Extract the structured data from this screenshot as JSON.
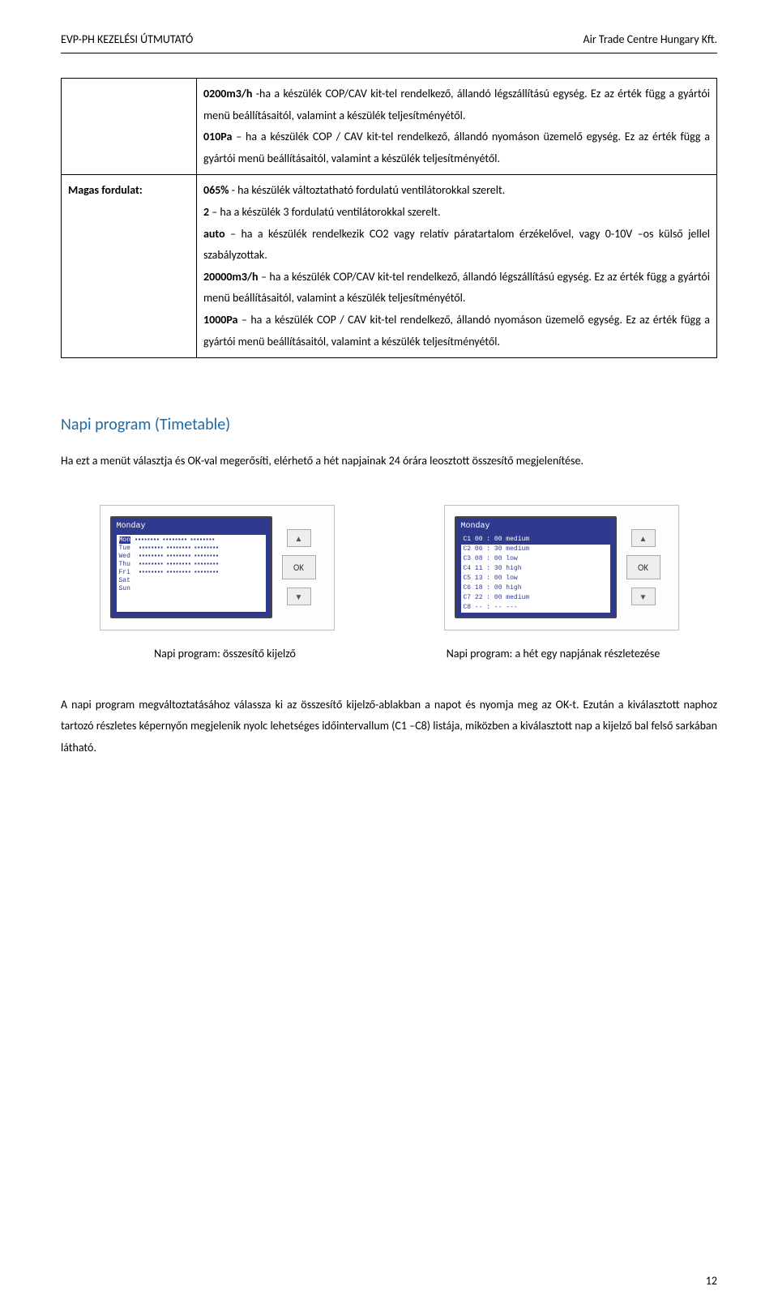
{
  "header": {
    "left": "EVP-PH KEZELÉSI ÚTMUTATÓ",
    "right": "Air Trade Centre Hungary Kft."
  },
  "table": {
    "row1_label": "",
    "row1_body": "0200m3/h -ha a készülék COP/CAV kit-tel rendelkező, állandó légszállítású egység. Ez az érték függ a gyártói menü beállításaitól, valamint a készülék teljesítményétől.\n010Pa – ha a készülék COP / CAV kit-tel rendelkező, állandó nyomáson üzemelő egység. Ez az érték függ a gyártói menü beállításaitól, valamint a készülék teljesítményétől.",
    "row2_label": "Magas fordulat:",
    "row2_body": "065% - ha készülék változtatható fordulatú ventilátorokkal szerelt.\n2 – ha a készülék 3 fordulatú ventilátorokkal szerelt.\nauto – ha a készülék rendelkezik CO2 vagy relatív páratartalom érzékelővel, vagy 0-10V –os külső jellel szabályzottak.\n20000m3/h – ha a készülék COP/CAV kit-tel rendelkező, állandó légszállítású egység. Ez az érték függ a gyártói menü beállításaitól, valamint a készülék teljesítményétől.\n1000Pa – ha a készülék COP / CAV kit-tel rendelkező, állandó nyomáson üzemelő egység. Ez az érték függ a gyártói menü beállításaitól, valamint a készülék teljesítményétől."
  },
  "section": {
    "heading": "Napi program (Timetable)",
    "intro": "Ha ezt a menüt választja és OK-val megerősíti, elérhető a hét napjainak 24 órára leosztott összesítő megjelenítése."
  },
  "figures": {
    "left": {
      "lcd_title": "Monday",
      "days": [
        "Mon",
        "Tue",
        "Wed",
        "Thu",
        "Fri",
        "Sat",
        "Sun"
      ],
      "caption": "Napi program: összesítő kijelző"
    },
    "right": {
      "lcd_title": "Monday",
      "rows": [
        {
          "c": "C1",
          "t": "00 : 00",
          "m": "medium",
          "sel": true
        },
        {
          "c": "C2",
          "t": "06 : 30",
          "m": "medium",
          "sel": false
        },
        {
          "c": "C3",
          "t": "08 : 00",
          "m": "low",
          "sel": false
        },
        {
          "c": "C4",
          "t": "11 : 30",
          "m": "high",
          "sel": false
        },
        {
          "c": "C5",
          "t": "13 : 00",
          "m": "low",
          "sel": false
        },
        {
          "c": "C6",
          "t": "18 : 00",
          "m": "high",
          "sel": false
        },
        {
          "c": "C7",
          "t": "22 : 00",
          "m": "medium",
          "sel": false
        },
        {
          "c": "C8",
          "t": "-- : --",
          "m": "---",
          "sel": false
        }
      ],
      "caption": "Napi program: a hét egy napjának részletezése"
    },
    "btn_ok": "OK"
  },
  "after_text": "A napi program megváltoztatásához válassza ki az összesítő kijelző-ablakban a napot és nyomja meg az OK-t. Ezután a kiválasztott naphoz tartozó részletes képernyőn megjelenik nyolc lehetséges időintervallum (C1 –C8) listája, miközben a kiválasztott nap a kijelző bal felső sarkában látható.",
  "page_number": "12",
  "colors": {
    "heading": "#1f6aa5",
    "lcd_blue": "#2f3a8e",
    "border": "#000000",
    "panel_border": "#bfbfbf",
    "btn_bg": "#eeeeee",
    "btn_border": "#aaaaaa"
  }
}
